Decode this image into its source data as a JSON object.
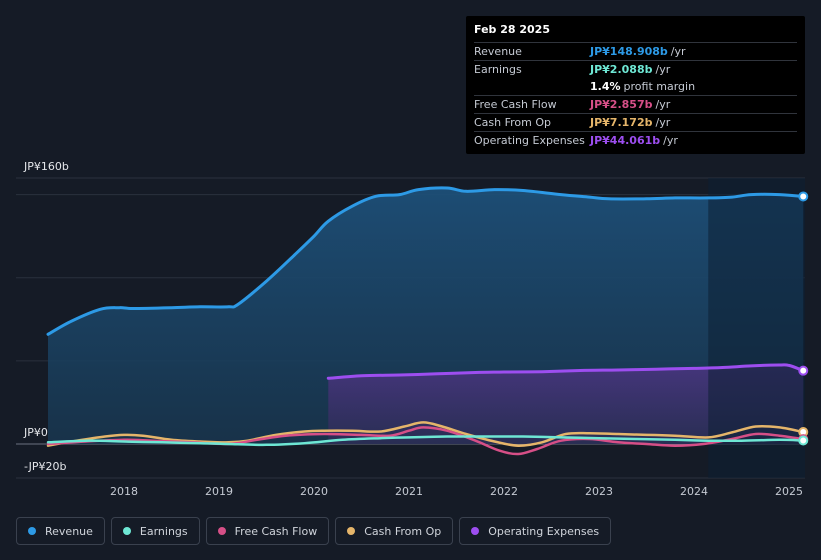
{
  "colors": {
    "background": "#151b26",
    "revenue": "#2d9ae6",
    "earnings": "#6ee7d4",
    "free_cash_flow": "#d64f87",
    "cash_from_op": "#e5b56a",
    "operating_expenses": "#9d4ef0",
    "grid": "#2a313d",
    "text": "#d0d4db"
  },
  "tooltip": {
    "date": "Feb 28 2025",
    "rows": [
      {
        "label": "Revenue",
        "value": "JP¥148.908b",
        "unit": "/yr",
        "color": "#2d9ae6"
      },
      {
        "label": "Earnings",
        "value": "JP¥2.088b",
        "unit": "/yr",
        "color": "#6ee7d4"
      },
      {
        "label": "",
        "value": "1.4%",
        "unit": "profit margin",
        "color": "#ffffff"
      },
      {
        "label": "Free Cash Flow",
        "value": "JP¥2.857b",
        "unit": "/yr",
        "color": "#d64f87"
      },
      {
        "label": "Cash From Op",
        "value": "JP¥7.172b",
        "unit": "/yr",
        "color": "#e5b56a"
      },
      {
        "label": "Operating Expenses",
        "value": "JP¥44.061b",
        "unit": "/yr",
        "color": "#9d4ef0"
      }
    ]
  },
  "legend": [
    {
      "label": "Revenue",
      "color": "#2d9ae6"
    },
    {
      "label": "Earnings",
      "color": "#6ee7d4"
    },
    {
      "label": "Free Cash Flow",
      "color": "#d64f87"
    },
    {
      "label": "Cash From Op",
      "color": "#e5b56a"
    },
    {
      "label": "Operating Expenses",
      "color": "#9d4ef0"
    }
  ],
  "chart_data": {
    "type": "area",
    "title": "",
    "xlabel": "",
    "ylabel": "",
    "y_tick_labels": [
      {
        "value": 160,
        "label": "JP¥160b"
      },
      {
        "value": 0,
        "label": "JP¥0"
      },
      {
        "value": -20,
        "label": "-JP¥20b"
      }
    ],
    "x_tick_labels": [
      "2018",
      "2019",
      "2020",
      "2021",
      "2022",
      "2023",
      "2024",
      "2025"
    ],
    "xlim": [
      2017.2,
      2025.15
    ],
    "ylim": [
      -20,
      160
    ],
    "forecast_start": 2024.15,
    "series": [
      {
        "name": "Revenue",
        "key": "revenue",
        "fill": true,
        "points": [
          [
            2017.2,
            66
          ],
          [
            2017.45,
            74
          ],
          [
            2017.75,
            81
          ],
          [
            2017.95,
            82
          ],
          [
            2018.1,
            81.5
          ],
          [
            2018.5,
            82
          ],
          [
            2018.8,
            82.5
          ],
          [
            2019.1,
            82.5
          ],
          [
            2019.2,
            84
          ],
          [
            2019.5,
            98
          ],
          [
            2019.8,
            114
          ],
          [
            2020.0,
            125
          ],
          [
            2020.15,
            134
          ],
          [
            2020.4,
            143
          ],
          [
            2020.65,
            149
          ],
          [
            2020.9,
            150
          ],
          [
            2021.1,
            153
          ],
          [
            2021.4,
            154
          ],
          [
            2021.6,
            152
          ],
          [
            2021.9,
            153
          ],
          [
            2022.2,
            152.5
          ],
          [
            2022.6,
            150
          ],
          [
            2022.9,
            148.5
          ],
          [
            2023.1,
            147.5
          ],
          [
            2023.5,
            147.5
          ],
          [
            2023.8,
            148
          ],
          [
            2024.15,
            148
          ],
          [
            2024.4,
            148.5
          ],
          [
            2024.6,
            150
          ],
          [
            2024.9,
            150
          ],
          [
            2025.15,
            148.9
          ]
        ]
      },
      {
        "name": "Operating Expenses",
        "key": "operating_expenses",
        "fill": true,
        "points": [
          [
            2020.15,
            39.5
          ],
          [
            2020.5,
            41
          ],
          [
            2020.9,
            41.5
          ],
          [
            2021.3,
            42.2
          ],
          [
            2021.7,
            43
          ],
          [
            2022.0,
            43.3
          ],
          [
            2022.4,
            43.5
          ],
          [
            2022.8,
            44.2
          ],
          [
            2023.2,
            44.5
          ],
          [
            2023.6,
            45
          ],
          [
            2024.0,
            45.5
          ],
          [
            2024.3,
            46
          ],
          [
            2024.6,
            47
          ],
          [
            2024.9,
            47.5
          ],
          [
            2025.0,
            47.3
          ],
          [
            2025.15,
            44.1
          ]
        ]
      },
      {
        "name": "Cash From Op",
        "key": "cash_from_op",
        "fill": false,
        "points": [
          [
            2017.2,
            -1
          ],
          [
            2017.5,
            2
          ],
          [
            2017.8,
            4.5
          ],
          [
            2018.0,
            5.5
          ],
          [
            2018.2,
            5
          ],
          [
            2018.5,
            2.5
          ],
          [
            2018.8,
            1.5
          ],
          [
            2019.1,
            1
          ],
          [
            2019.3,
            2
          ],
          [
            2019.6,
            5.5
          ],
          [
            2019.9,
            7.5
          ],
          [
            2020.1,
            8
          ],
          [
            2020.4,
            8
          ],
          [
            2020.7,
            7.5
          ],
          [
            2020.95,
            10.5
          ],
          [
            2021.15,
            13
          ],
          [
            2021.35,
            10.5
          ],
          [
            2021.6,
            6
          ],
          [
            2021.9,
            1.5
          ],
          [
            2022.15,
            -1
          ],
          [
            2022.4,
            1
          ],
          [
            2022.65,
            6
          ],
          [
            2022.9,
            6.5
          ],
          [
            2023.2,
            6
          ],
          [
            2023.5,
            5.5
          ],
          [
            2023.8,
            5
          ],
          [
            2024.15,
            4
          ],
          [
            2024.4,
            7
          ],
          [
            2024.65,
            10.5
          ],
          [
            2024.9,
            10
          ],
          [
            2025.15,
            7.2
          ]
        ]
      },
      {
        "name": "Free Cash Flow",
        "key": "free_cash_flow",
        "fill": false,
        "points": [
          [
            2017.2,
            0
          ],
          [
            2017.6,
            1.5
          ],
          [
            2018.0,
            2.5
          ],
          [
            2018.3,
            2
          ],
          [
            2018.7,
            1
          ],
          [
            2019.1,
            0
          ],
          [
            2019.4,
            2.5
          ],
          [
            2019.7,
            5
          ],
          [
            2020.1,
            6
          ],
          [
            2020.5,
            5.5
          ],
          [
            2020.8,
            5
          ],
          [
            2021.0,
            8
          ],
          [
            2021.15,
            10
          ],
          [
            2021.4,
            8
          ],
          [
            2021.7,
            2
          ],
          [
            2021.95,
            -4
          ],
          [
            2022.15,
            -6
          ],
          [
            2022.35,
            -3
          ],
          [
            2022.6,
            2
          ],
          [
            2022.9,
            3
          ],
          [
            2023.2,
            1
          ],
          [
            2023.5,
            0
          ],
          [
            2023.8,
            -1
          ],
          [
            2024.1,
            0
          ],
          [
            2024.4,
            3
          ],
          [
            2024.65,
            6
          ],
          [
            2024.9,
            5
          ],
          [
            2025.15,
            2.9
          ]
        ]
      },
      {
        "name": "Earnings",
        "key": "earnings",
        "fill": false,
        "points": [
          [
            2017.2,
            1
          ],
          [
            2017.6,
            2
          ],
          [
            2018.0,
            1.5
          ],
          [
            2018.4,
            1
          ],
          [
            2018.8,
            0.5
          ],
          [
            2019.1,
            0
          ],
          [
            2019.5,
            -0.5
          ],
          [
            2019.9,
            0.5
          ],
          [
            2020.3,
            2.5
          ],
          [
            2020.7,
            3.5
          ],
          [
            2021.0,
            4
          ],
          [
            2021.4,
            4.5
          ],
          [
            2021.8,
            4.5
          ],
          [
            2022.2,
            4.5
          ],
          [
            2022.6,
            4
          ],
          [
            2023.0,
            3.5
          ],
          [
            2023.4,
            3
          ],
          [
            2023.8,
            2.5
          ],
          [
            2024.15,
            2
          ],
          [
            2024.5,
            2
          ],
          [
            2024.9,
            2.5
          ],
          [
            2025.15,
            2.1
          ]
        ]
      }
    ]
  }
}
